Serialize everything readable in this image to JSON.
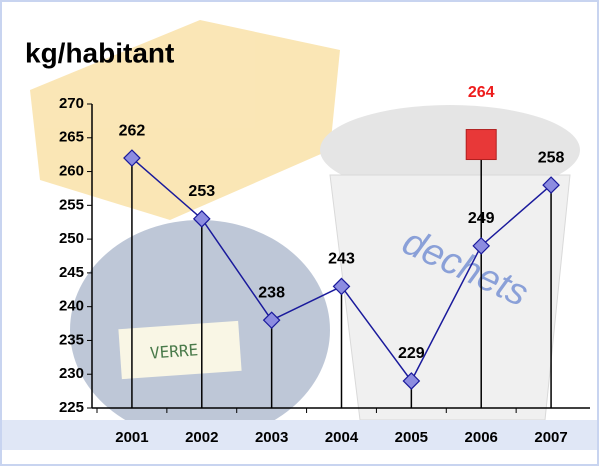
{
  "chart_data": {
    "type": "line",
    "title": "kg/habitant",
    "categories": [
      "2001",
      "2002",
      "2003",
      "2004",
      "2005",
      "2006",
      "2007"
    ],
    "series": [
      {
        "color": "#1a1a9c",
        "label_color": "#000000",
        "values": [
          262,
          253,
          238,
          243,
          229,
          249,
          258
        ]
      },
      {
        "color": "#e83838",
        "label_color": "#ee1c1c",
        "values": [
          null,
          null,
          null,
          null,
          null,
          264,
          null
        ]
      }
    ],
    "ylim": [
      225,
      270
    ],
    "yticks": [
      225,
      230,
      235,
      240,
      245,
      250,
      255,
      260,
      265,
      270
    ],
    "annotations": [
      "VERRE",
      "dechets"
    ]
  }
}
